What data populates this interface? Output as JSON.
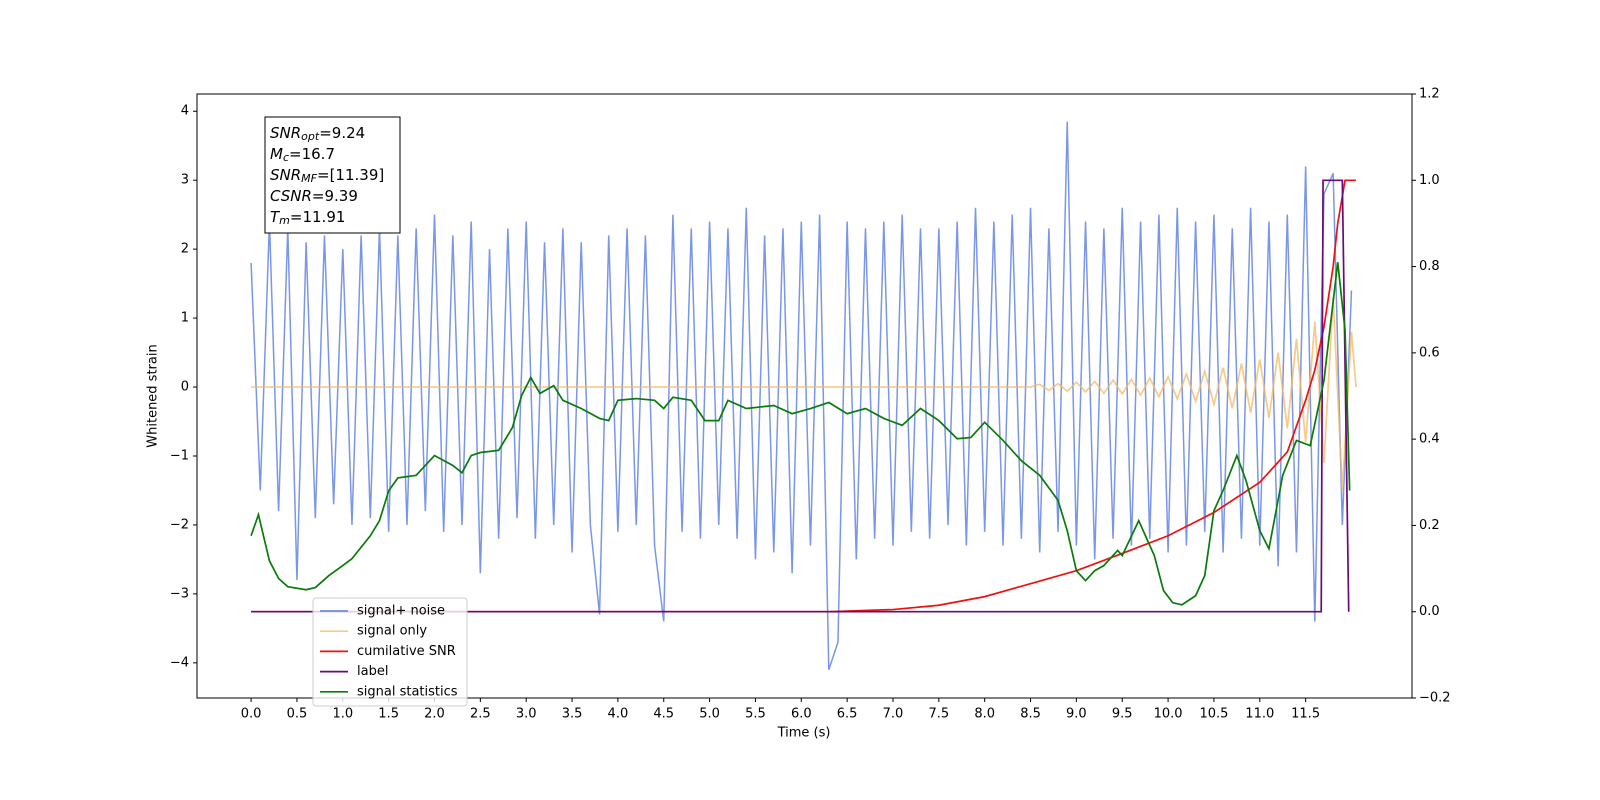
{
  "chart_data": {
    "type": "line",
    "xlabel": "Time (s)",
    "ylabel": "Whitened strain",
    "xlim": [
      -0.59,
      12.66
    ],
    "ylim": [
      -4.51,
      4.25
    ],
    "y2lim": [
      -0.2,
      1.2
    ],
    "xticks": [
      {
        "value": 0,
        "label": "0.0"
      },
      {
        "value": 0.5,
        "label": "0.5"
      },
      {
        "value": 1,
        "label": "1.0"
      },
      {
        "value": 1.5,
        "label": "1.5"
      },
      {
        "value": 2,
        "label": "2.0"
      },
      {
        "value": 2.5,
        "label": "2.5"
      },
      {
        "value": 3,
        "label": "3.0"
      },
      {
        "value": 3.5,
        "label": "3.5"
      },
      {
        "value": 4,
        "label": "4.0"
      },
      {
        "value": 4.5,
        "label": "4.5"
      },
      {
        "value": 5,
        "label": "5.0"
      },
      {
        "value": 5.5,
        "label": "5.5"
      },
      {
        "value": 6,
        "label": "6.0"
      },
      {
        "value": 6.5,
        "label": "6.5"
      },
      {
        "value": 7,
        "label": "7.0"
      },
      {
        "value": 7.5,
        "label": "7.5"
      },
      {
        "value": 8,
        "label": "8.0"
      },
      {
        "value": 8.5,
        "label": "8.5"
      },
      {
        "value": 9,
        "label": "9.0"
      },
      {
        "value": 9.5,
        "label": "9.5"
      },
      {
        "value": 10,
        "label": "10.0"
      },
      {
        "value": 10.5,
        "label": "10.5"
      },
      {
        "value": 11,
        "label": "11.0"
      },
      {
        "value": 11.5,
        "label": "11.5"
      }
    ],
    "yticks": [
      {
        "value": -4,
        "label": "−4"
      },
      {
        "value": -3,
        "label": "−3"
      },
      {
        "value": -2,
        "label": "−2"
      },
      {
        "value": -1,
        "label": "−1"
      },
      0,
      1,
      2,
      3,
      4
    ],
    "y2ticks": [
      {
        "value": -0.2,
        "label": "−0.2"
      },
      {
        "value": 0,
        "label": "0.0"
      },
      {
        "value": 0.2,
        "label": "0.2"
      },
      {
        "value": 0.4,
        "label": "0.4"
      },
      {
        "value": 0.6,
        "label": "0.6"
      },
      {
        "value": 0.8,
        "label": "0.8"
      },
      {
        "value": 1,
        "label": "1.0"
      },
      {
        "value": 1.2,
        "label": "1.2"
      }
    ],
    "annotations": [
      {
        "symbol": "SNR",
        "subscript": "opt",
        "text": "=9.24"
      },
      {
        "symbol": "M",
        "subscript": "c",
        "text": "=16.7"
      },
      {
        "symbol": "SNR",
        "subscript": "MF",
        "text": "=[11.39]"
      },
      {
        "symbol": "CSNR",
        "subscript": "",
        "text": "=9.39"
      },
      {
        "symbol": "T",
        "subscript": "m",
        "text": "=11.91"
      }
    ],
    "series": [
      {
        "name": "signal+ noise",
        "color": "#6b8be6",
        "axis": "y",
        "x": [
          0,
          0.1,
          0.2,
          0.3,
          0.4,
          0.5,
          0.6,
          0.7,
          0.8,
          0.9,
          1,
          1.1,
          1.2,
          1.3,
          1.4,
          1.5,
          1.6,
          1.7,
          1.8,
          1.9,
          2,
          2.1,
          2.2,
          2.3,
          2.4,
          2.5,
          2.6,
          2.7,
          2.8,
          2.9,
          3,
          3.1,
          3.2,
          3.3,
          3.4,
          3.5,
          3.6,
          3.7,
          3.8,
          3.9,
          4,
          4.1,
          4.2,
          4.3,
          4.4,
          4.5,
          4.6,
          4.7,
          4.8,
          4.9,
          5,
          5.1,
          5.2,
          5.3,
          5.4,
          5.5,
          5.6,
          5.7,
          5.8,
          5.9,
          6,
          6.1,
          6.2,
          6.3,
          6.4,
          6.5,
          6.6,
          6.7,
          6.8,
          6.9,
          7,
          7.1,
          7.2,
          7.3,
          7.4,
          7.5,
          7.6,
          7.7,
          7.8,
          7.9,
          8,
          8.1,
          8.2,
          8.3,
          8.4,
          8.5,
          8.6,
          8.7,
          8.8,
          8.9,
          9,
          9.1,
          9.2,
          9.3,
          9.4,
          9.5,
          9.6,
          9.7,
          9.8,
          9.9,
          10,
          10.1,
          10.2,
          10.3,
          10.4,
          10.5,
          10.6,
          10.7,
          10.8,
          10.9,
          11,
          11.1,
          11.2,
          11.3,
          11.4,
          11.5,
          11.6,
          11.7,
          11.8,
          11.9,
          12
        ],
        "values": [
          1.8,
          -1.5,
          2.4,
          -1.8,
          2.3,
          -2.8,
          2.1,
          -1.9,
          2.2,
          -1.7,
          2.0,
          -2.0,
          2.2,
          -1.9,
          2.3,
          -2.1,
          2.2,
          -2.0,
          2.3,
          -1.8,
          2.5,
          -2.1,
          2.2,
          -2.0,
          2.4,
          -2.7,
          2.0,
          -2.2,
          2.3,
          -1.9,
          2.4,
          -2.2,
          2.1,
          -2.0,
          2.3,
          -2.4,
          2.1,
          -2.0,
          -3.3,
          2.2,
          -2.1,
          2.3,
          -2.0,
          2.2,
          -2.3,
          -3.4,
          2.5,
          -2.1,
          2.3,
          -2.2,
          2.4,
          -2.0,
          2.3,
          -2.2,
          2.6,
          -2.5,
          2.2,
          -2.4,
          2.3,
          -2.7,
          2.4,
          -2.3,
          2.5,
          -4.1,
          -3.7,
          2.4,
          -2.5,
          2.3,
          -2.2,
          2.4,
          -2.3,
          2.5,
          -2.1,
          2.3,
          -2.2,
          2.3,
          -2.0,
          2.4,
          -2.3,
          2.6,
          -2.1,
          2.4,
          -2.3,
          2.5,
          -2.2,
          2.6,
          -2.4,
          2.3,
          -2.1,
          3.85,
          -2.3,
          2.4,
          -2.5,
          2.3,
          -2.2,
          2.6,
          -2.3,
          2.4,
          -2.2,
          2.5,
          -2.4,
          2.6,
          -2.3,
          2.4,
          -2.1,
          2.5,
          -2.4,
          2.3,
          -2.2,
          2.6,
          -2.3,
          2.4,
          -2.6,
          2.5,
          -2.4,
          3.2,
          -3.4,
          2.8,
          3.1,
          -2.0,
          1.4
        ]
      },
      {
        "name": "signal only",
        "color": "#f5b860",
        "axis": "y",
        "x": [
          0,
          8.5,
          8.6,
          8.7,
          8.8,
          8.9,
          9,
          9.1,
          9.2,
          9.3,
          9.4,
          9.5,
          9.6,
          9.7,
          9.8,
          9.9,
          10,
          10.1,
          10.2,
          10.3,
          10.4,
          10.5,
          10.6,
          10.7,
          10.8,
          10.9,
          11,
          11.1,
          11.2,
          11.3,
          11.4,
          11.5,
          11.6,
          11.7,
          11.8,
          11.9,
          12,
          12.05
        ],
        "values": [
          0,
          0,
          0.04,
          -0.05,
          0.05,
          -0.06,
          0.07,
          -0.07,
          0.08,
          -0.09,
          0.1,
          -0.1,
          0.11,
          -0.12,
          0.13,
          -0.14,
          0.15,
          -0.17,
          0.19,
          -0.21,
          0.23,
          -0.25,
          0.28,
          -0.31,
          0.34,
          -0.37,
          0.4,
          -0.45,
          0.5,
          -0.6,
          0.7,
          -0.8,
          0.95,
          -1.1,
          1.3,
          -1.5,
          0.8,
          0
        ]
      },
      {
        "name": "cumilative SNR",
        "color": "#ee1111",
        "axis": "y2",
        "x": [
          0,
          6.3,
          7,
          7.5,
          8,
          8.5,
          9,
          9.5,
          10,
          10.5,
          11,
          11.3,
          11.5,
          11.6,
          11.7,
          11.8,
          11.85,
          11.93,
          12.05
        ],
        "values": [
          0,
          0,
          0.005,
          0.015,
          0.035,
          0.065,
          0.095,
          0.135,
          0.176,
          0.23,
          0.3,
          0.37,
          0.49,
          0.56,
          0.66,
          0.8,
          0.9,
          1,
          1
        ]
      },
      {
        "name": "label",
        "color": "#6a0a78",
        "axis": "y2",
        "x": [
          0,
          11.67,
          11.69,
          11.9,
          11.97
        ],
        "values": [
          0,
          0,
          1,
          1,
          0
        ]
      },
      {
        "name": "signal statistics",
        "color": "#0a7a0a",
        "axis": "y2",
        "x": [
          0,
          0.08,
          0.2,
          0.3,
          0.4,
          0.6,
          0.7,
          0.85,
          1,
          1.1,
          1.3,
          1.4,
          1.5,
          1.6,
          1.8,
          2,
          2.2,
          2.3,
          2.4,
          2.5,
          2.7,
          2.85,
          2.95,
          3.05,
          3.15,
          3.3,
          3.4,
          3.6,
          3.8,
          3.9,
          4,
          4.2,
          4.4,
          4.5,
          4.6,
          4.8,
          4.95,
          5.1,
          5.2,
          5.4,
          5.7,
          5.9,
          6.1,
          6.3,
          6.5,
          6.7,
          6.9,
          7.1,
          7.3,
          7.5,
          7.7,
          7.85,
          8,
          8.2,
          8.4,
          8.6,
          8.8,
          8.9,
          9,
          9.1,
          9.2,
          9.3,
          9.45,
          9.5,
          9.68,
          9.85,
          9.95,
          10.05,
          10.15,
          10.3,
          10.4,
          10.5,
          10.6,
          10.75,
          10.85,
          11,
          11.1,
          11.25,
          11.4,
          11.55,
          11.7,
          11.85,
          11.93,
          11.98
        ],
        "values": [
          0.176,
          0.225,
          0.118,
          0.077,
          0.058,
          0.051,
          0.056,
          0.084,
          0.107,
          0.123,
          0.176,
          0.211,
          0.28,
          0.31,
          0.316,
          0.362,
          0.339,
          0.322,
          0.362,
          0.369,
          0.374,
          0.427,
          0.501,
          0.543,
          0.506,
          0.524,
          0.49,
          0.471,
          0.448,
          0.443,
          0.49,
          0.494,
          0.49,
          0.471,
          0.497,
          0.49,
          0.443,
          0.443,
          0.49,
          0.471,
          0.478,
          0.459,
          0.471,
          0.485,
          0.459,
          0.471,
          0.448,
          0.432,
          0.471,
          0.443,
          0.401,
          0.404,
          0.439,
          0.397,
          0.35,
          0.316,
          0.258,
          0.188,
          0.095,
          0.072,
          0.095,
          0.107,
          0.142,
          0.13,
          0.211,
          0.13,
          0.049,
          0.021,
          0.016,
          0.037,
          0.084,
          0.234,
          0.281,
          0.362,
          0.304,
          0.188,
          0.146,
          0.316,
          0.397,
          0.385,
          0.536,
          0.81,
          0.652,
          0.281
        ]
      }
    ]
  }
}
